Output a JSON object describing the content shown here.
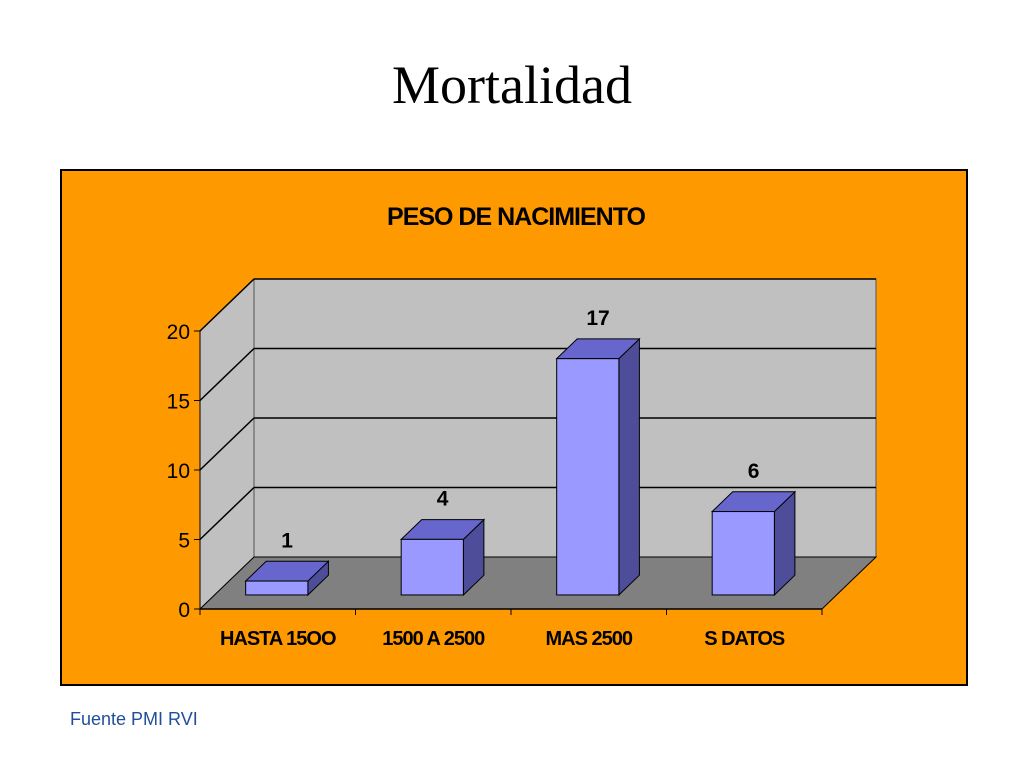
{
  "slide": {
    "title": "Mortalidad",
    "source": "Fuente PMI RVI"
  },
  "colors": {
    "frame_background": "#FF9900",
    "wall": "#C0C0C0",
    "floor": "#808080",
    "bar_front": "#9999FF",
    "bar_top": "#6666CC",
    "bar_side": "#4D4D99",
    "source_text": "#1F4E9B"
  },
  "chart_data": {
    "type": "bar",
    "style": "3d-column",
    "title": "PESO DE NACIMIENTO",
    "categories": [
      "HASTA 15OO",
      "1500 A 2500",
      "MAS 2500",
      "S DATOS"
    ],
    "values": [
      1,
      4,
      17,
      6
    ],
    "data_labels": [
      "1",
      "4",
      "17",
      "6"
    ],
    "ylim": [
      0,
      20
    ],
    "yticks": [
      0,
      5,
      10,
      15,
      20
    ],
    "xlabel": "",
    "ylabel": "",
    "grid": true,
    "legend": "none"
  }
}
